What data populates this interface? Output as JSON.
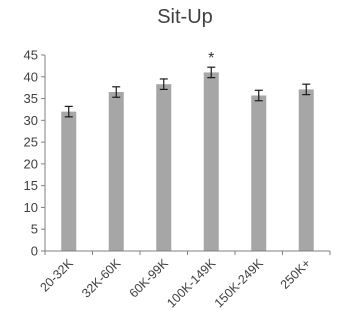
{
  "chart_data": {
    "type": "bar",
    "title": "Sit-Up",
    "xlabel": "",
    "ylabel": "",
    "categories": [
      "20-32K",
      "32K-60K",
      "60K-99K",
      "100K-149K",
      "150K-249K",
      "250K+"
    ],
    "values": [
      32.0,
      36.5,
      38.3,
      41.0,
      35.7,
      37.1
    ],
    "error": [
      1.2,
      1.2,
      1.2,
      1.2,
      1.2,
      1.2
    ],
    "annotations": [
      "",
      "",
      "",
      "*",
      "",
      ""
    ],
    "ylim": [
      0,
      45
    ],
    "yticks": [
      "0",
      "5",
      "10",
      "15",
      "20",
      "25",
      "30",
      "35",
      "40",
      "45"
    ],
    "grid": false,
    "legend": "none",
    "colors": {
      "bar": "#a6a6a6",
      "axis": "#808080",
      "errorbar": "#1a1a1a",
      "text": "#404040"
    }
  }
}
